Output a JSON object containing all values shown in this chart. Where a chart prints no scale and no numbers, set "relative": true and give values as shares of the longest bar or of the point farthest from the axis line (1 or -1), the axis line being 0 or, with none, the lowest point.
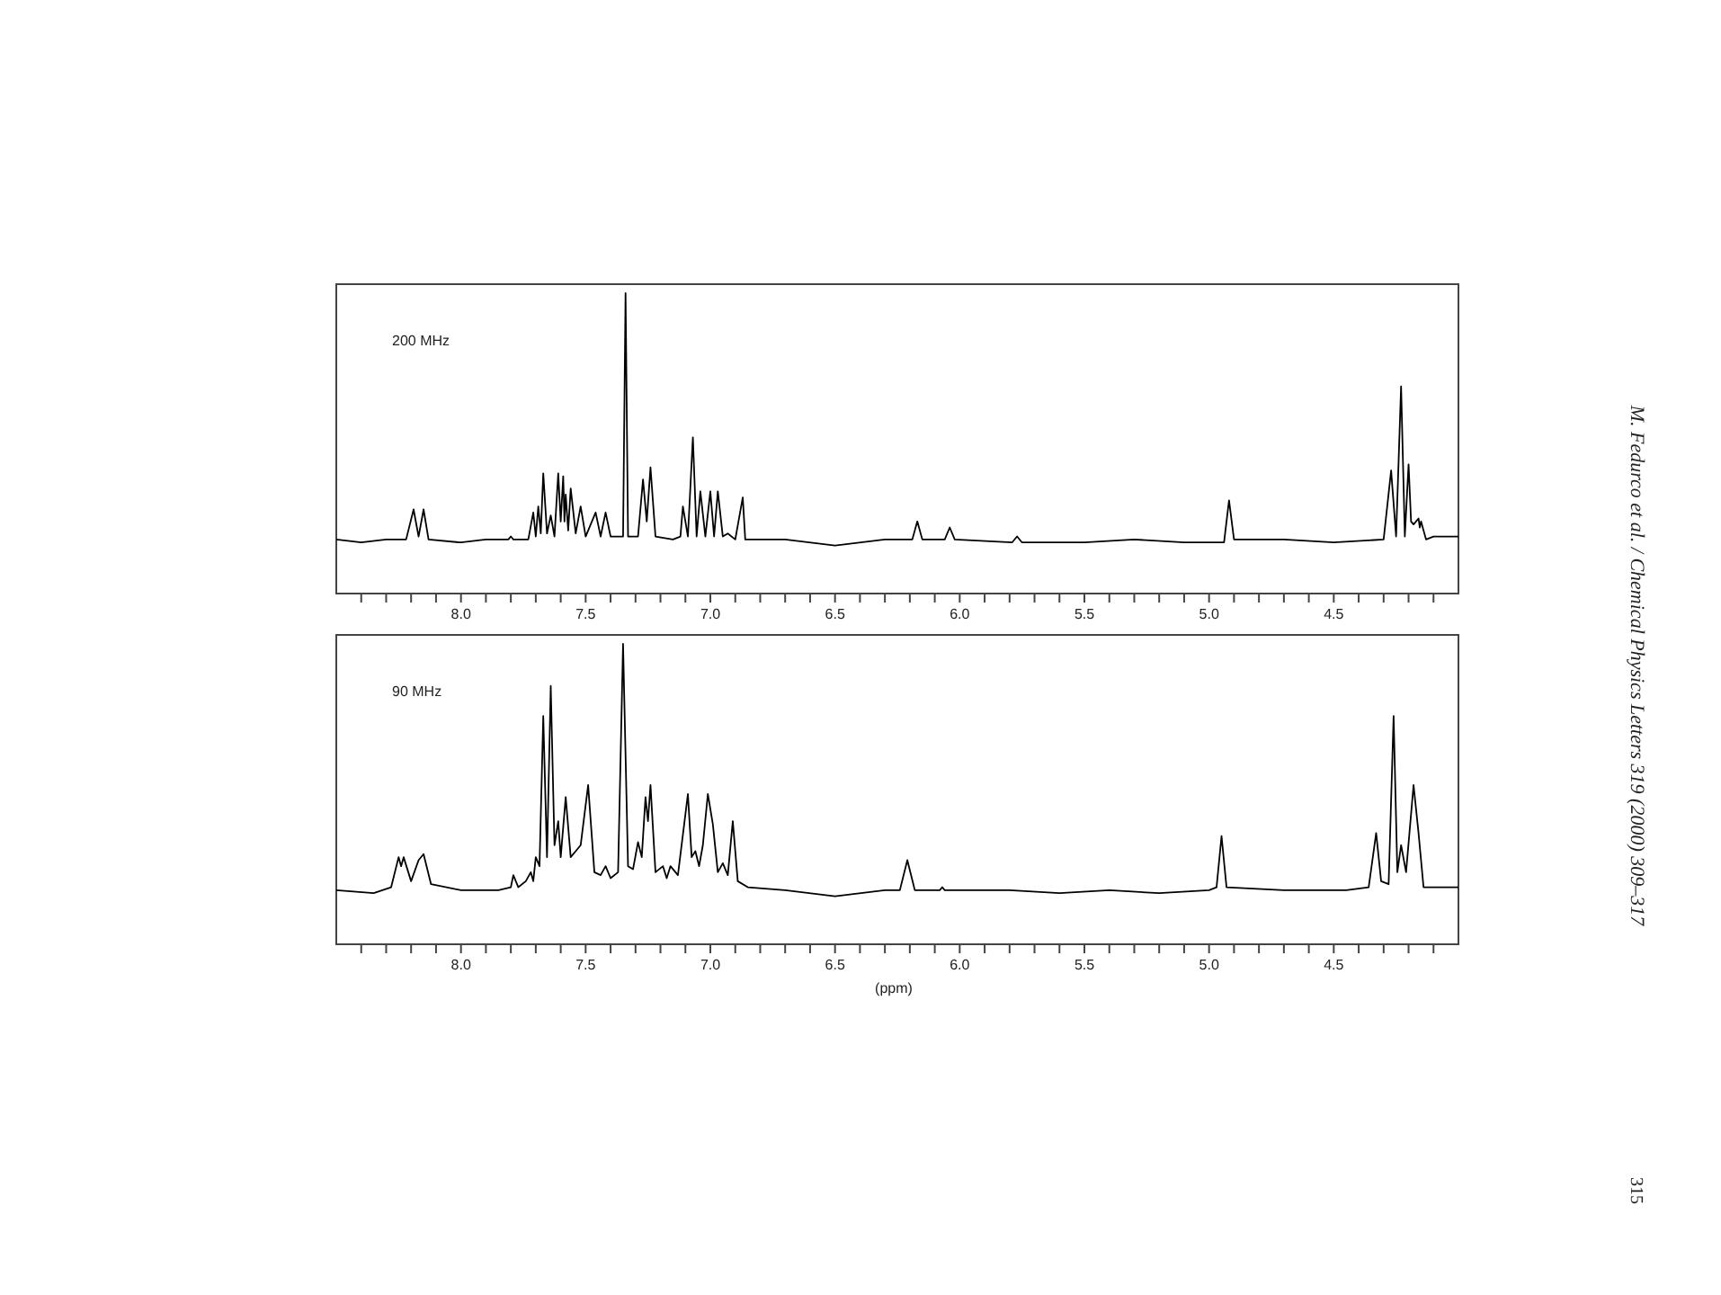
{
  "chart_data": [
    {
      "type": "line",
      "title": "200 MHz",
      "relative": true,
      "tick_labels": "x",
      "color": "#000000",
      "xlim": [
        8.5,
        4.0
      ],
      "xticks": [
        {
          "value": 8.4,
          "label": null
        },
        {
          "value": 8.3,
          "label": null
        },
        {
          "value": 8.2,
          "label": null
        },
        {
          "value": 8.1,
          "label": null
        },
        {
          "value": 8.0,
          "label": "8.0"
        },
        {
          "value": 7.9,
          "label": null
        },
        {
          "value": 7.8,
          "label": null
        },
        {
          "value": 7.7,
          "label": null
        },
        {
          "value": 7.6,
          "label": null
        },
        {
          "value": 7.5,
          "label": "7.5"
        },
        {
          "value": 7.4,
          "label": null
        },
        {
          "value": 7.3,
          "label": null
        },
        {
          "value": 7.2,
          "label": null
        },
        {
          "value": 7.1,
          "label": null
        },
        {
          "value": 7.0,
          "label": "7.0"
        },
        {
          "value": 6.9,
          "label": null
        },
        {
          "value": 6.8,
          "label": null
        },
        {
          "value": 6.7,
          "label": null
        },
        {
          "value": 6.6,
          "label": null
        },
        {
          "value": 6.5,
          "label": "6.5"
        },
        {
          "value": 6.4,
          "label": null
        },
        {
          "value": 6.3,
          "label": null
        },
        {
          "value": 6.2,
          "label": null
        },
        {
          "value": 6.1,
          "label": null
        },
        {
          "value": 6.0,
          "label": "6.0"
        },
        {
          "value": 5.9,
          "label": null
        },
        {
          "value": 5.8,
          "label": null
        },
        {
          "value": 5.7,
          "label": null
        },
        {
          "value": 5.6,
          "label": null
        },
        {
          "value": 5.5,
          "label": "5.5"
        },
        {
          "value": 5.4,
          "label": null
        },
        {
          "value": 5.3,
          "label": null
        },
        {
          "value": 5.2,
          "label": null
        },
        {
          "value": 5.1,
          "label": null
        },
        {
          "value": 5.0,
          "label": "5.0"
        },
        {
          "value": 4.9,
          "label": null
        },
        {
          "value": 4.8,
          "label": null
        },
        {
          "value": 4.7,
          "label": null
        },
        {
          "value": 4.6,
          "label": null
        },
        {
          "value": 4.5,
          "label": "4.5"
        },
        {
          "value": 4.4,
          "label": null
        },
        {
          "value": 4.3,
          "label": null
        },
        {
          "value": 4.2,
          "label": null
        },
        {
          "value": 4.1,
          "label": null
        }
      ],
      "x": [
        8.5,
        8.4,
        8.3,
        8.22,
        8.19,
        8.17,
        8.15,
        8.13,
        8.0,
        7.9,
        7.81,
        7.8,
        7.79,
        7.73,
        7.71,
        7.7,
        7.69,
        7.68,
        7.67,
        7.655,
        7.64,
        7.625,
        7.61,
        7.6,
        7.59,
        7.585,
        7.58,
        7.57,
        7.56,
        7.54,
        7.52,
        7.5,
        7.46,
        7.44,
        7.42,
        7.4,
        7.35,
        7.34,
        7.33,
        7.29,
        7.27,
        7.255,
        7.24,
        7.22,
        7.15,
        7.12,
        7.11,
        7.09,
        7.07,
        7.055,
        7.04,
        7.02,
        7.0,
        6.985,
        6.97,
        6.95,
        6.93,
        6.9,
        6.87,
        6.86,
        6.7,
        6.5,
        6.3,
        6.19,
        6.17,
        6.15,
        6.06,
        6.04,
        6.02,
        5.79,
        5.77,
        5.75,
        5.5,
        5.3,
        5.1,
        4.94,
        4.92,
        4.9,
        4.7,
        4.5,
        4.3,
        4.27,
        4.25,
        4.23,
        4.215,
        4.2,
        4.19,
        4.18,
        4.16,
        4.155,
        4.15,
        4.13,
        4.1,
        4.05,
        4.0
      ],
      "values": [
        0.18,
        0.17,
        0.18,
        0.18,
        0.28,
        0.19,
        0.28,
        0.18,
        0.17,
        0.18,
        0.18,
        0.19,
        0.18,
        0.18,
        0.27,
        0.19,
        0.29,
        0.2,
        0.4,
        0.2,
        0.26,
        0.19,
        0.4,
        0.24,
        0.39,
        0.24,
        0.33,
        0.21,
        0.35,
        0.2,
        0.29,
        0.19,
        0.27,
        0.19,
        0.27,
        0.19,
        0.19,
        1.0,
        0.19,
        0.19,
        0.38,
        0.24,
        0.42,
        0.19,
        0.18,
        0.19,
        0.29,
        0.19,
        0.52,
        0.19,
        0.34,
        0.19,
        0.34,
        0.19,
        0.34,
        0.19,
        0.2,
        0.18,
        0.32,
        0.18,
        0.18,
        0.16,
        0.18,
        0.18,
        0.24,
        0.18,
        0.18,
        0.22,
        0.18,
        0.17,
        0.19,
        0.17,
        0.17,
        0.18,
        0.17,
        0.17,
        0.31,
        0.18,
        0.18,
        0.17,
        0.18,
        0.41,
        0.19,
        0.69,
        0.19,
        0.43,
        0.24,
        0.23,
        0.25,
        0.22,
        0.24,
        0.18,
        0.19,
        0.19,
        0.19
      ],
      "annotations": [
        "M. Fedurco et al. / Chemical Physics Letters 319 (2000) 309–317",
        "315"
      ]
    },
    {
      "type": "line",
      "title": "90 MHz",
      "xlabel": "(ppm)",
      "relative": true,
      "tick_labels": "x",
      "color": "#000000",
      "xlim": [
        8.5,
        4.0
      ],
      "xticks": [
        {
          "value": 8.4,
          "label": null
        },
        {
          "value": 8.3,
          "label": null
        },
        {
          "value": 8.2,
          "label": null
        },
        {
          "value": 8.1,
          "label": null
        },
        {
          "value": 8.0,
          "label": "8.0"
        },
        {
          "value": 7.9,
          "label": null
        },
        {
          "value": 7.8,
          "label": null
        },
        {
          "value": 7.7,
          "label": null
        },
        {
          "value": 7.6,
          "label": null
        },
        {
          "value": 7.5,
          "label": "7.5"
        },
        {
          "value": 7.4,
          "label": null
        },
        {
          "value": 7.3,
          "label": null
        },
        {
          "value": 7.2,
          "label": null
        },
        {
          "value": 7.1,
          "label": null
        },
        {
          "value": 7.0,
          "label": "7.0"
        },
        {
          "value": 6.9,
          "label": null
        },
        {
          "value": 6.8,
          "label": null
        },
        {
          "value": 6.7,
          "label": null
        },
        {
          "value": 6.6,
          "label": null
        },
        {
          "value": 6.5,
          "label": "6.5"
        },
        {
          "value": 6.4,
          "label": null
        },
        {
          "value": 6.3,
          "label": null
        },
        {
          "value": 6.2,
          "label": null
        },
        {
          "value": 6.1,
          "label": null
        },
        {
          "value": 6.0,
          "label": "6.0"
        },
        {
          "value": 5.9,
          "label": null
        },
        {
          "value": 5.8,
          "label": null
        },
        {
          "value": 5.7,
          "label": null
        },
        {
          "value": 5.6,
          "label": null
        },
        {
          "value": 5.5,
          "label": "5.5"
        },
        {
          "value": 5.4,
          "label": null
        },
        {
          "value": 5.3,
          "label": null
        },
        {
          "value": 5.2,
          "label": null
        },
        {
          "value": 5.1,
          "label": null
        },
        {
          "value": 5.0,
          "label": "5.0"
        },
        {
          "value": 4.9,
          "label": null
        },
        {
          "value": 4.8,
          "label": null
        },
        {
          "value": 4.7,
          "label": null
        },
        {
          "value": 4.6,
          "label": null
        },
        {
          "value": 4.5,
          "label": "4.5"
        },
        {
          "value": 4.4,
          "label": null
        },
        {
          "value": 4.3,
          "label": null
        },
        {
          "value": 4.2,
          "label": null
        },
        {
          "value": 4.1,
          "label": null
        }
      ],
      "x": [
        8.5,
        8.35,
        8.28,
        8.25,
        8.24,
        8.23,
        8.2,
        8.17,
        8.15,
        8.12,
        8.0,
        7.85,
        7.8,
        7.79,
        7.77,
        7.74,
        7.72,
        7.71,
        7.7,
        7.685,
        7.67,
        7.655,
        7.64,
        7.625,
        7.61,
        7.6,
        7.58,
        7.56,
        7.54,
        7.52,
        7.49,
        7.465,
        7.44,
        7.42,
        7.4,
        7.37,
        7.35,
        7.33,
        7.31,
        7.29,
        7.275,
        7.26,
        7.25,
        7.24,
        7.22,
        7.19,
        7.175,
        7.16,
        7.13,
        7.09,
        7.075,
        7.06,
        7.045,
        7.03,
        7.01,
        6.99,
        6.97,
        6.95,
        6.93,
        6.91,
        6.89,
        6.85,
        6.7,
        6.5,
        6.3,
        6.24,
        6.21,
        6.18,
        6.08,
        6.07,
        6.06,
        5.8,
        5.6,
        5.4,
        5.2,
        5.0,
        4.97,
        4.95,
        4.93,
        4.7,
        4.45,
        4.36,
        4.33,
        4.31,
        4.28,
        4.26,
        4.245,
        4.23,
        4.21,
        4.18,
        4.16,
        4.14,
        4.1,
        4.05,
        4.02,
        4.0
      ],
      "values": [
        0.18,
        0.17,
        0.19,
        0.29,
        0.26,
        0.29,
        0.21,
        0.28,
        0.3,
        0.2,
        0.18,
        0.18,
        0.19,
        0.23,
        0.19,
        0.21,
        0.24,
        0.21,
        0.29,
        0.26,
        0.76,
        0.29,
        0.86,
        0.33,
        0.41,
        0.29,
        0.49,
        0.29,
        0.31,
        0.33,
        0.53,
        0.24,
        0.23,
        0.26,
        0.22,
        0.24,
        1.0,
        0.26,
        0.25,
        0.34,
        0.29,
        0.49,
        0.41,
        0.53,
        0.24,
        0.26,
        0.22,
        0.26,
        0.23,
        0.5,
        0.29,
        0.31,
        0.26,
        0.33,
        0.5,
        0.4,
        0.24,
        0.27,
        0.23,
        0.41,
        0.21,
        0.19,
        0.18,
        0.16,
        0.18,
        0.18,
        0.28,
        0.18,
        0.18,
        0.19,
        0.18,
        0.18,
        0.17,
        0.18,
        0.17,
        0.18,
        0.19,
        0.36,
        0.19,
        0.18,
        0.18,
        0.19,
        0.37,
        0.21,
        0.2,
        0.76,
        0.24,
        0.33,
        0.24,
        0.53,
        0.37,
        0.19,
        0.19,
        0.19,
        0.19,
        0.19
      ]
    }
  ]
}
